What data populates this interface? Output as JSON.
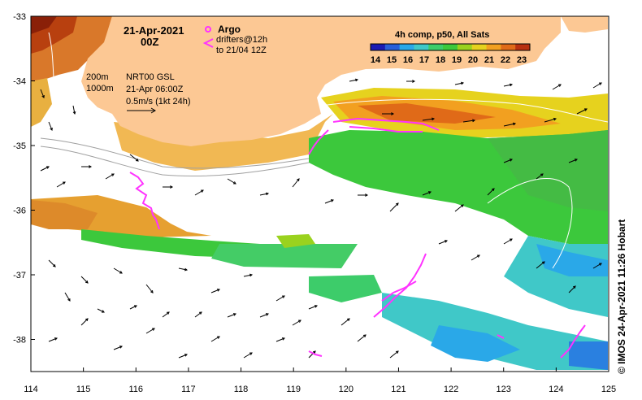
{
  "map": {
    "date_line1": "21-Apr-2021",
    "date_line2": "00Z",
    "product_line1": "NRT00 GSL",
    "product_line2": "21-Apr 06:00Z",
    "scale_label": "0.5m/s (1kt 24h)",
    "isobath_label_1": "200m",
    "isobath_label_2": "1000m",
    "legend": {
      "argo_label": "Argo",
      "drifters_line1": "drifters@12h",
      "drifters_line2": "to 21/04 12Z",
      "argo_color": "#ff33ff"
    },
    "colorbar": {
      "title": "4h comp, p50, All Sats",
      "ticks": [
        "14",
        "15",
        "16",
        "17",
        "18",
        "19",
        "20",
        "21",
        "22",
        "23"
      ],
      "colors": [
        "#1b1bb3",
        "#2a5fd8",
        "#2aa8e8",
        "#40c8c8",
        "#3dcc6a",
        "#3cc83c",
        "#9ad21e",
        "#e6d21e",
        "#f2a020",
        "#e06a18",
        "#b83010"
      ]
    },
    "credit": "© IMOS 24-Apr-2021 11:26 Hobart",
    "land_color": "#fcc894",
    "x_ticks": [
      "114",
      "115",
      "116",
      "117",
      "118",
      "119",
      "120",
      "121",
      "122",
      "123",
      "124",
      "125"
    ],
    "y_ticks": [
      "-33",
      "-34",
      "-35",
      "-36",
      "-37",
      "-38"
    ]
  }
}
